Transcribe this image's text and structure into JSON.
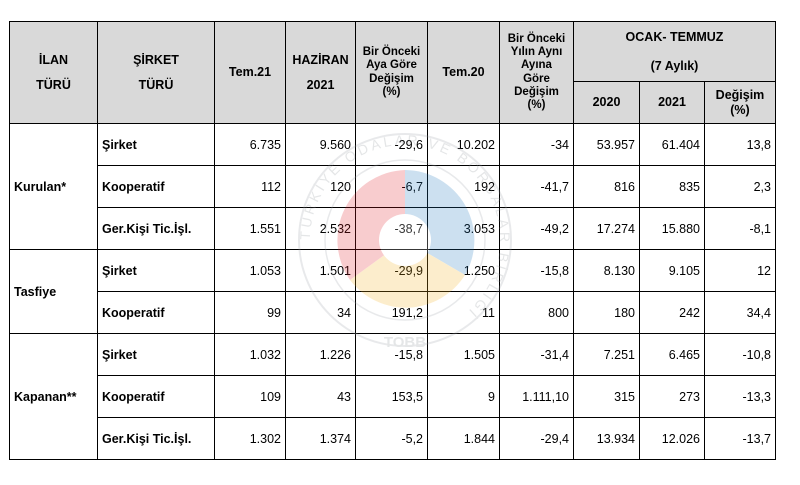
{
  "header": {
    "ilan_line1": "İLAN",
    "ilan_line2": "TÜRÜ",
    "sirket_line1": "ŞİRKET",
    "sirket_line2": "TÜRÜ",
    "tem21": "Tem.21",
    "haziran_line1": "HAZİRAN",
    "haziran_line2": "2021",
    "prev_month_line1": "Bir Önceki",
    "prev_month_line2": "Aya Göre",
    "prev_month_line3": "Değişim",
    "prev_month_line4": "(%)",
    "tem20": "Tem.20",
    "prev_year_line1": "Bir Önceki",
    "prev_year_line2": "Yılın Aynı",
    "prev_year_line3": "Ayına",
    "prev_year_line4": "Göre",
    "prev_year_change_line1": "Değişim",
    "prev_year_change_line2": "(%)",
    "ocak_temmuz": "OCAK- TEMMUZ",
    "yedi_aylik": "(7 Aylık)",
    "y2020": "2020",
    "y2021": "2021",
    "change_line1": "Değişim",
    "change_line2": "(%)"
  },
  "groups": [
    {
      "name": "Kurulan*",
      "rows": [
        {
          "type": "Şirket",
          "tem21": "6.735",
          "haziran": "9.560",
          "aya_gore": "-29,6",
          "tem20": "10.202",
          "yila_gore": "-34",
          "y2020": "53.957",
          "y2021": "61.404",
          "degisim": "13,8"
        },
        {
          "type": "Kooperatif",
          "tem21": "112",
          "haziran": "120",
          "aya_gore": "-6,7",
          "tem20": "192",
          "yila_gore": "-41,7",
          "y2020": "816",
          "y2021": "835",
          "degisim": "2,3"
        },
        {
          "type": "Ger.Kişi Tic.İşl.",
          "tem21": "1.551",
          "haziran": "2.532",
          "aya_gore": "-38,7",
          "tem20": "3.053",
          "yila_gore": "-49,2",
          "y2020": "17.274",
          "y2021": "15.880",
          "degisim": "-8,1"
        }
      ]
    },
    {
      "name": "Tasfiye",
      "rows": [
        {
          "type": "Şirket",
          "tem21": "1.053",
          "haziran": "1.501",
          "aya_gore": "-29,9",
          "tem20": "1.250",
          "yila_gore": "-15,8",
          "y2020": "8.130",
          "y2021": "9.105",
          "degisim": "12"
        },
        {
          "type": "Kooperatif",
          "tem21": "99",
          "haziran": "34",
          "aya_gore": "191,2",
          "tem20": "11",
          "yila_gore": "800",
          "y2020": "180",
          "y2021": "242",
          "degisim": "34,4"
        }
      ]
    },
    {
      "name": "Kapanan**",
      "rows": [
        {
          "type": "Şirket",
          "tem21": "1.032",
          "haziran": "1.226",
          "aya_gore": "-15,8",
          "tem20": "1.505",
          "yila_gore": "-31,4",
          "y2020": "7.251",
          "y2021": "6.465",
          "degisim": "-10,8"
        },
        {
          "type": "Kooperatif",
          "tem21": "109",
          "haziran": "43",
          "aya_gore": "153,5",
          "tem20": "9",
          "yila_gore": "1.111,10",
          "y2020": "315",
          "y2021": "273",
          "degisim": "-13,3"
        },
        {
          "type": "Ger.Kişi Tic.İşl.",
          "tem21": "1.302",
          "haziran": "1.374",
          "aya_gore": "-5,2",
          "tem20": "1.844",
          "yila_gore": "-29,4",
          "y2020": "13.934",
          "y2021": "12.026",
          "degisim": "-13,7"
        }
      ]
    }
  ],
  "watermark": {
    "text": "TÜRKİYE ODALAR VE BORSALAR BİRLİĞİ",
    "abbr": "TOBB",
    "colors": [
      "#e41e26",
      "#1b75bc",
      "#f6b11a",
      "#9aa0a6"
    ]
  }
}
